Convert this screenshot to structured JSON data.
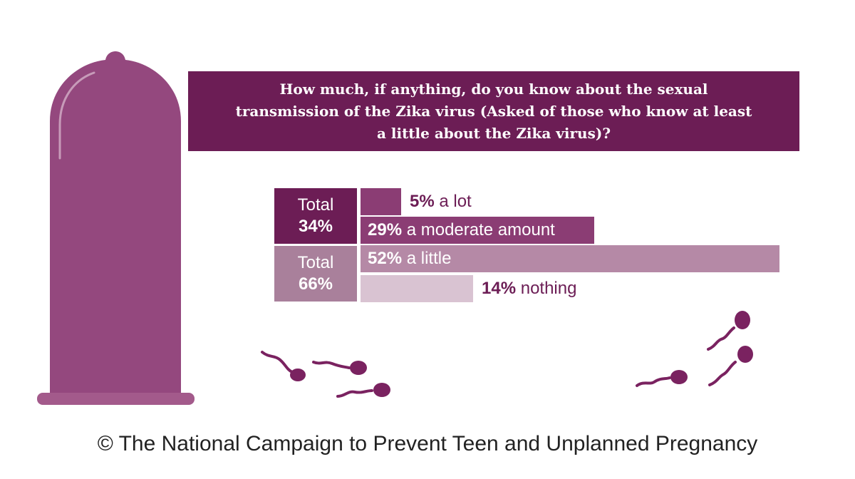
{
  "title": "How much, if anything, do you know about the sexual transmission of the Zika virus (Asked of those who know at least a little about the Zika virus)?",
  "groups": [
    {
      "label": "Total",
      "value": "34%",
      "color": "#6c1d55"
    },
    {
      "label": "Total",
      "value": "66%",
      "color": "#a9809b"
    }
  ],
  "chart_data": {
    "type": "bar",
    "orientation": "horizontal",
    "title": "How much, if anything, do you know about the sexual transmission of the Zika virus (Asked of those who know at least a little about the Zika virus)?",
    "categories": [
      "a lot",
      "a moderate amount",
      "a little",
      "nothing"
    ],
    "values": [
      5,
      29,
      52,
      14
    ],
    "labels": [
      {
        "pct": "5%",
        "text": " a lot"
      },
      {
        "pct": "29%",
        "text": " a moderate amount"
      },
      {
        "pct": "52%",
        "text": " a little"
      },
      {
        "pct": "14%",
        "text": " nothing"
      }
    ],
    "colors": [
      "#8b3d74",
      "#8b3d74",
      "#b589a6",
      "#d9c3d2"
    ],
    "group_totals": [
      {
        "label": "Total",
        "value": 34
      },
      {
        "label": "Total",
        "value": 66
      }
    ]
  },
  "footer": "© The National Campaign to Prevent Teen and Unplanned Pregnancy",
  "colors": {
    "primary": "#6c1d55",
    "condom": "#94487e",
    "condom_rim": "#a35a8b",
    "sperm": "#7a2260"
  }
}
